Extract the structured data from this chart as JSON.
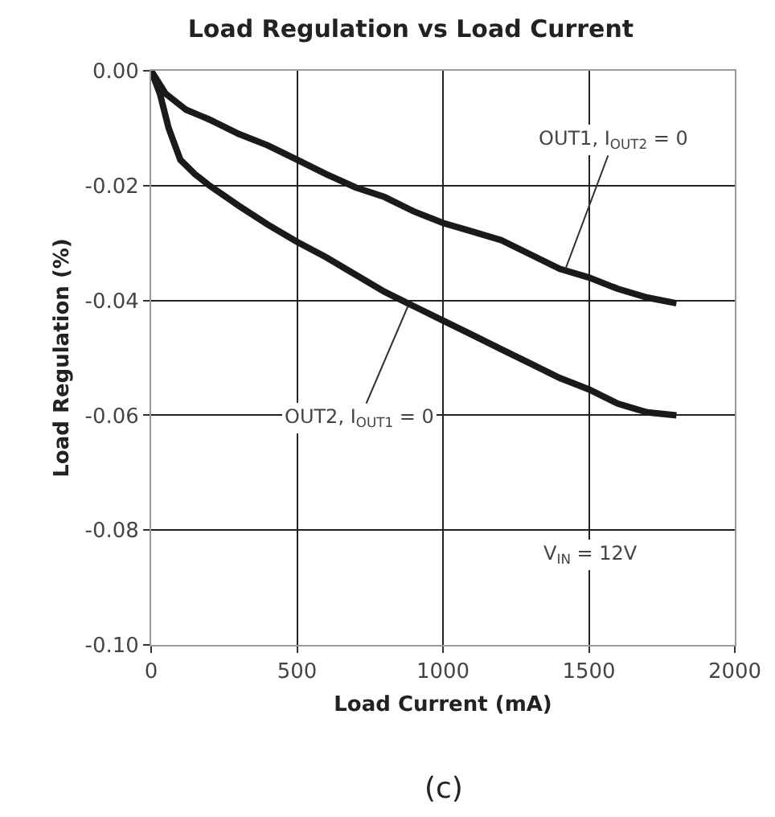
{
  "chart_data": {
    "type": "line",
    "title": "Load Regulation vs Load Current",
    "xlabel": "Load Current (mA)",
    "ylabel": "Load Regulation (%)",
    "x": [
      0,
      50,
      120,
      200,
      300,
      400,
      500,
      600,
      700,
      800,
      900,
      1000,
      1100,
      1200,
      1300,
      1400,
      1500,
      1600,
      1700,
      1800
    ],
    "series": [
      {
        "color": "#1a1a1a",
        "values": [
          0,
          -0.004,
          -0.0068,
          -0.0085,
          -0.011,
          -0.013,
          -0.0155,
          -0.018,
          -0.0203,
          -0.022,
          -0.0245,
          -0.0265,
          -0.028,
          -0.0295,
          -0.032,
          -0.0345,
          -0.036,
          -0.038,
          -0.0395,
          -0.0405
        ]
      },
      {
        "color": "#1a1a1a",
        "x": [
          0,
          30,
          60,
          100,
          150,
          200,
          300,
          400,
          500,
          600,
          700,
          800,
          900,
          1000,
          1100,
          1200,
          1300,
          1400,
          1500,
          1600,
          1700,
          1800
        ],
        "values": [
          0,
          -0.004,
          -0.01,
          -0.0155,
          -0.018,
          -0.02,
          -0.0235,
          -0.0268,
          -0.0298,
          -0.0325,
          -0.0355,
          -0.0385,
          -0.041,
          -0.0435,
          -0.046,
          -0.0485,
          -0.051,
          -0.0535,
          -0.0555,
          -0.058,
          -0.0595,
          -0.06
        ]
      }
    ],
    "xlim": [
      0,
      2000
    ],
    "xticks": [
      0,
      500,
      1000,
      1500,
      2000
    ],
    "ylim": [
      -0.1,
      0
    ],
    "yticks": [
      {
        "value": 0,
        "label": "0.00"
      },
      {
        "value": -0.02,
        "label": "-0.02"
      },
      {
        "value": -0.04,
        "label": "-0.04"
      },
      {
        "value": -0.06,
        "label": "-0.06"
      },
      {
        "value": -0.08,
        "label": "-0.08"
      },
      {
        "value": -0.1,
        "label": "-0.10"
      }
    ],
    "grid": true,
    "marker": "none",
    "line_style": "solid",
    "annotations": [
      {
        "text": "OUT1, I$_{OUT2}$ = 0",
        "x": 1420,
        "y": -0.0345
      },
      {
        "text": "OUT2, I$_{OUT1}$ = 0",
        "x": 880,
        "y": -0.041
      },
      "V$_{IN}$ = 12V",
      "(c)"
    ]
  }
}
